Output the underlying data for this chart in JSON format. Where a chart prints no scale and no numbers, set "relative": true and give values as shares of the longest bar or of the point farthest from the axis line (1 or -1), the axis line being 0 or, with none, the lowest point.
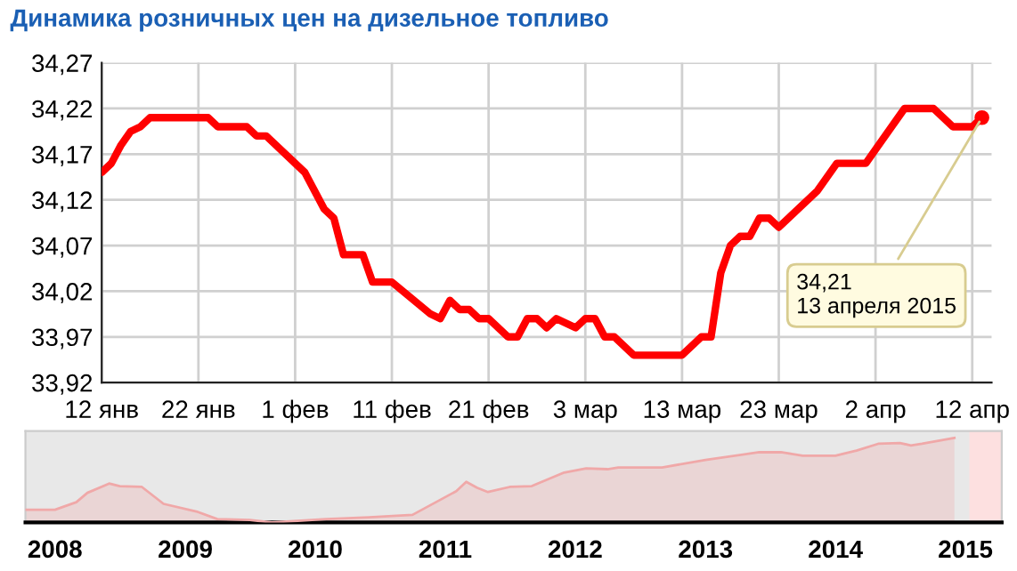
{
  "chart_data": [
    {
      "type": "line",
      "title": "Динамика розничных цен на дизельное топливо",
      "grid": true,
      "legend": false,
      "x": [
        "2015-01-12",
        "2015-01-13",
        "2015-01-14",
        "2015-01-15",
        "2015-01-16",
        "2015-01-17",
        "2015-01-23",
        "2015-01-24",
        "2015-01-27",
        "2015-01-28",
        "2015-01-29",
        "2015-02-02",
        "2015-02-04",
        "2015-02-05",
        "2015-02-06",
        "2015-02-08",
        "2015-02-09",
        "2015-02-11",
        "2015-02-15",
        "2015-02-16",
        "2015-02-17",
        "2015-02-18",
        "2015-02-19",
        "2015-02-20",
        "2015-02-21",
        "2015-02-23",
        "2015-02-24",
        "2015-02-25",
        "2015-02-26",
        "2015-02-27",
        "2015-02-28",
        "2015-03-02",
        "2015-03-03",
        "2015-03-04",
        "2015-03-05",
        "2015-03-06",
        "2015-03-08",
        "2015-03-13",
        "2015-03-15",
        "2015-03-16",
        "2015-03-17",
        "2015-03-18",
        "2015-03-19",
        "2015-03-20",
        "2015-03-21",
        "2015-03-22",
        "2015-03-23",
        "2015-03-25",
        "2015-03-27",
        "2015-03-29",
        "2015-03-30",
        "2015-04-01",
        "2015-04-02",
        "2015-04-05",
        "2015-04-08",
        "2015-04-10",
        "2015-04-12",
        "2015-04-13"
      ],
      "series": [
        {
          "color": "#ff0000",
          "values": [
            34.15,
            34.16,
            34.18,
            34.195,
            34.2,
            34.21,
            34.21,
            34.2,
            34.2,
            34.19,
            34.19,
            34.15,
            34.11,
            34.1,
            34.06,
            34.06,
            34.03,
            34.03,
            33.995,
            33.99,
            34.01,
            34.0,
            34.0,
            33.99,
            33.99,
            33.97,
            33.97,
            33.99,
            33.99,
            33.98,
            33.99,
            33.98,
            33.99,
            33.99,
            33.97,
            33.97,
            33.95,
            33.95,
            33.97,
            33.97,
            34.04,
            34.07,
            34.08,
            34.08,
            34.1,
            34.1,
            34.09,
            34.11,
            34.13,
            34.16,
            34.16,
            34.16,
            34.175,
            34.22,
            34.22,
            34.2,
            34.2,
            34.21
          ]
        }
      ],
      "xlim": [
        "2015-01-12",
        "2015-04-14"
      ],
      "xticks": [
        {
          "value": "2015-01-12",
          "label": "12 янв"
        },
        {
          "value": "2015-01-22",
          "label": "22 янв"
        },
        {
          "value": "2015-02-01",
          "label": "1 фев"
        },
        {
          "value": "2015-02-11",
          "label": "11 фев"
        },
        {
          "value": "2015-02-21",
          "label": "21 фев"
        },
        {
          "value": "2015-03-03",
          "label": "3 мар"
        },
        {
          "value": "2015-03-13",
          "label": "13 мар"
        },
        {
          "value": "2015-03-23",
          "label": "23 мар"
        },
        {
          "value": "2015-04-02",
          "label": "2 апр"
        },
        {
          "value": "2015-04-12",
          "label": "12 апр"
        }
      ],
      "ylim": [
        33.92,
        34.27
      ],
      "yticks": [
        {
          "value": 33.92,
          "label": "33,92"
        },
        {
          "value": 33.97,
          "label": "33,97"
        },
        {
          "value": 34.02,
          "label": "34,02"
        },
        {
          "value": 34.07,
          "label": "34,07"
        },
        {
          "value": 34.12,
          "label": "34,12"
        },
        {
          "value": 34.17,
          "label": "34,17"
        },
        {
          "value": 34.22,
          "label": "34,22"
        },
        {
          "value": 34.27,
          "label": "34,27"
        }
      ],
      "annotations": [
        {
          "text": "34,21\n13 апреля 2015",
          "x": "2015-04-13",
          "y": 34.21
        }
      ]
    },
    {
      "type": "area",
      "relative": true,
      "grid": false,
      "legend": false,
      "tick_labels": "x",
      "x": [
        "2007-10-10",
        "2008-01-01",
        "2008-03-01",
        "2008-04-01",
        "2008-06-01",
        "2008-07-01",
        "2008-09-01",
        "2008-11-01",
        "2009-02-01",
        "2009-04-01",
        "2009-07-01",
        "2009-09-01",
        "2010-02-01",
        "2010-06-01",
        "2010-10-01",
        "2011-02-01",
        "2011-03-01",
        "2011-04-01",
        "2011-05-01",
        "2011-07-01",
        "2011-09-01",
        "2011-12-01",
        "2012-02-01",
        "2012-04-01",
        "2012-05-01",
        "2012-09-01",
        "2013-01-01",
        "2013-06-01",
        "2013-08-01",
        "2013-10-01",
        "2014-01-01",
        "2014-03-01",
        "2014-05-01",
        "2014-07-01",
        "2014-08-01",
        "2014-09-01",
        "2014-12-01"
      ],
      "series": [
        {
          "color": "#f0a8a8",
          "values": [
            0.15,
            0.15,
            0.24,
            0.35,
            0.46,
            0.43,
            0.42,
            0.22,
            0.13,
            0.04,
            0.03,
            0,
            0.04,
            0.06,
            0.09,
            0.37,
            0.48,
            0.41,
            0.36,
            0.42,
            0.43,
            0.59,
            0.64,
            0.63,
            0.65,
            0.65,
            0.74,
            0.83,
            0.83,
            0.79,
            0.79,
            0.85,
            0.93,
            0.94,
            0.91,
            0.93,
            1.0
          ]
        }
      ],
      "xlim": [
        "2007-10-10",
        "2015-04-13"
      ],
      "xticks": [
        {
          "value": "2008-01-01",
          "label": "2008"
        },
        {
          "value": "2009-01-01",
          "label": "2009"
        },
        {
          "value": "2010-01-01",
          "label": "2010"
        },
        {
          "value": "2011-01-01",
          "label": "2011"
        },
        {
          "value": "2012-01-01",
          "label": "2012"
        },
        {
          "value": "2013-01-01",
          "label": "2013"
        },
        {
          "value": "2014-01-01",
          "label": "2014"
        },
        {
          "value": "2015-01-01",
          "label": "2015"
        }
      ],
      "bands": [
        {
          "axis": "x",
          "from": "2015-01-12",
          "to": "2015-04-13",
          "color": "#fde0e0"
        }
      ]
    }
  ]
}
